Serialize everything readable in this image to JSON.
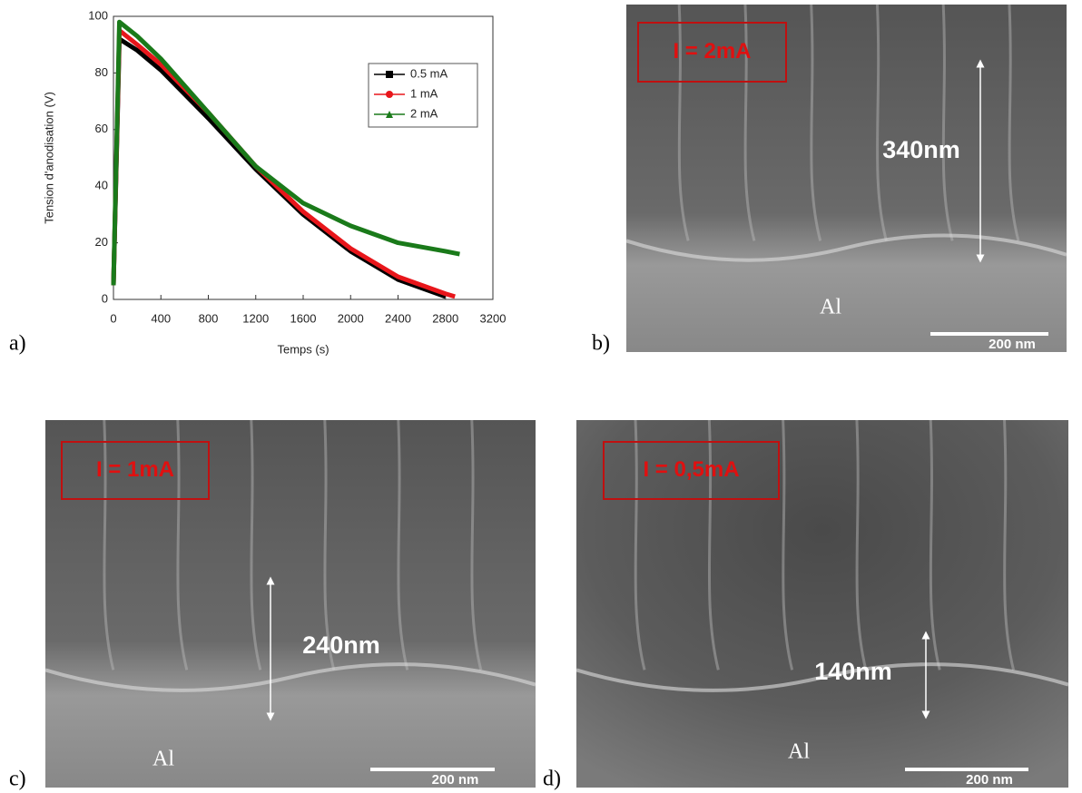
{
  "chart_data": {
    "type": "line",
    "x_label": "Temps (s)",
    "y_label": "Tension d'anodisation (V)",
    "xlim": [
      0,
      3200
    ],
    "xticks": [
      0,
      400,
      800,
      1200,
      1600,
      2000,
      2400,
      2800,
      3200
    ],
    "ylim": [
      0,
      100
    ],
    "yticks": [
      0,
      20,
      40,
      60,
      80,
      100
    ],
    "series": [
      {
        "name": "0.5 mA",
        "color": "#000000",
        "x": [
          0,
          50,
          200,
          400,
          800,
          1200,
          1600,
          2000,
          2400,
          2800
        ],
        "values": [
          5,
          92,
          88,
          81,
          64,
          46,
          30,
          17,
          7,
          1
        ]
      },
      {
        "name": "1 mA",
        "color": "#e8161b",
        "x": [
          0,
          50,
          200,
          400,
          800,
          1200,
          1600,
          2000,
          2400,
          2800,
          2880
        ],
        "values": [
          5,
          95,
          90,
          83,
          66,
          47,
          31,
          18,
          8,
          2,
          1
        ]
      },
      {
        "name": "2 mA",
        "color": "#1a7a1a",
        "x": [
          0,
          50,
          200,
          400,
          800,
          1200,
          1600,
          2000,
          2400,
          2800,
          2920
        ],
        "values": [
          5,
          98,
          93,
          85,
          66,
          47,
          34,
          26,
          20,
          17,
          16
        ]
      }
    ]
  },
  "panel_labels": [
    "a)",
    "b)",
    "c)",
    "d)"
  ],
  "images": [
    {
      "current": "I = 2mA",
      "thickness": "340nm",
      "substrate": "Al",
      "scale_bar": "200 nm"
    },
    {
      "current": "I = 1mA",
      "thickness": "240nm",
      "substrate": "Al",
      "scale_bar": "200 nm"
    },
    {
      "current": "I = 0,5mA",
      "thickness": "140nm",
      "substrate": "Al",
      "scale_bar": "200 nm"
    }
  ]
}
